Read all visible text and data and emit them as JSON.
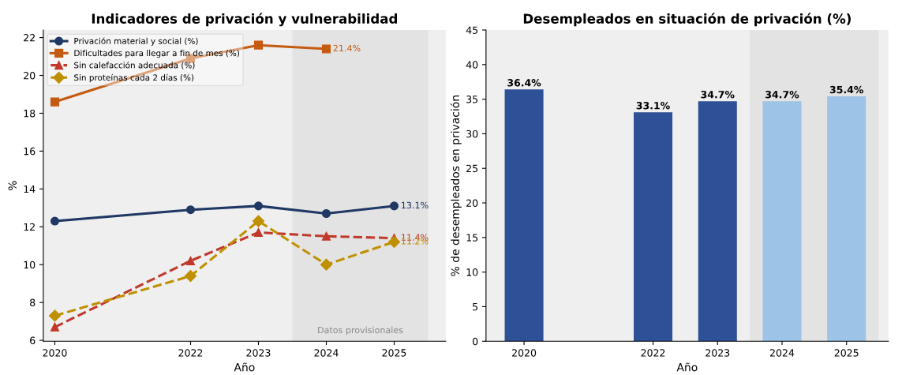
{
  "chart_data": [
    {
      "type": "line",
      "title": "Indicadores de privación y vulnerabilidad",
      "xlabel": "Año",
      "ylabel": "%",
      "x": [
        2020,
        2022,
        2023,
        2024,
        2025
      ],
      "xlim": [
        2019.83,
        2025.76
      ],
      "xticks": [
        2020,
        2022,
        2023,
        2024,
        2025
      ],
      "ylim": [
        5.95,
        22.4
      ],
      "yticks": [
        6,
        8,
        10,
        12,
        14,
        16,
        18,
        20,
        22
      ],
      "grid": false,
      "legend": "top left",
      "bands": [
        {
          "axis": "x",
          "from": 2023.5,
          "to": 2025.5,
          "label": "Datos provisionales",
          "color": "#e3e3e3"
        }
      ],
      "series": [
        {
          "name": "Privación material y social (%)",
          "color": "#1f3864",
          "marker": "circle",
          "line_style": "solid",
          "values": [
            12.3,
            12.9,
            13.1,
            12.7,
            13.1
          ],
          "value_labels": [
            null,
            null,
            null,
            null,
            "13.1%"
          ]
        },
        {
          "name": "Dificultades para llegar a fin de mes (%)",
          "color": "#c55a11",
          "marker": "square",
          "line_style": "solid",
          "values": [
            18.6,
            20.9,
            21.6,
            21.4,
            null
          ],
          "value_labels": [
            null,
            null,
            null,
            "21.4%",
            null
          ]
        },
        {
          "name": "Sin calefacción adecuada (%)",
          "color": "#c0392b",
          "marker": "triangle",
          "line_style": "dashed",
          "values": [
            6.7,
            10.2,
            11.7,
            11.5,
            11.4
          ],
          "value_labels": [
            null,
            null,
            null,
            null,
            "11.4%"
          ]
        },
        {
          "name": "Sin proteínas cada 2 días (%)",
          "color": "#bf9000",
          "marker": "diamond",
          "line_style": "dashed",
          "values": [
            7.3,
            9.4,
            12.3,
            10.0,
            11.2
          ],
          "value_labels": [
            null,
            null,
            null,
            null,
            "11.2%"
          ]
        }
      ]
    },
    {
      "type": "bar",
      "title": "Desempleados en situación de privación (%)",
      "xlabel": "Año",
      "ylabel": "% de desempleados en privación",
      "x": [
        2020,
        2022,
        2023,
        2024,
        2025
      ],
      "xlim": [
        2019.41,
        2025.65
      ],
      "xticks": [
        2020,
        2022,
        2023,
        2024,
        2025
      ],
      "ylim": [
        0,
        45
      ],
      "yticks": [
        0,
        5,
        10,
        15,
        20,
        25,
        30,
        35,
        40,
        45
      ],
      "grid": false,
      "bands": [
        {
          "axis": "x",
          "from": 2023.5,
          "to": 2025.5,
          "color": "#e3e3e3"
        }
      ],
      "values": [
        36.4,
        33.1,
        34.7,
        34.7,
        35.4
      ],
      "colors": [
        "#2e5096",
        "#2e5096",
        "#2e5096",
        "#9dc3e6",
        "#9dc3e6"
      ],
      "value_labels": [
        "36.4%",
        "33.1%",
        "34.7%",
        "34.7%",
        "35.4%"
      ]
    }
  ]
}
